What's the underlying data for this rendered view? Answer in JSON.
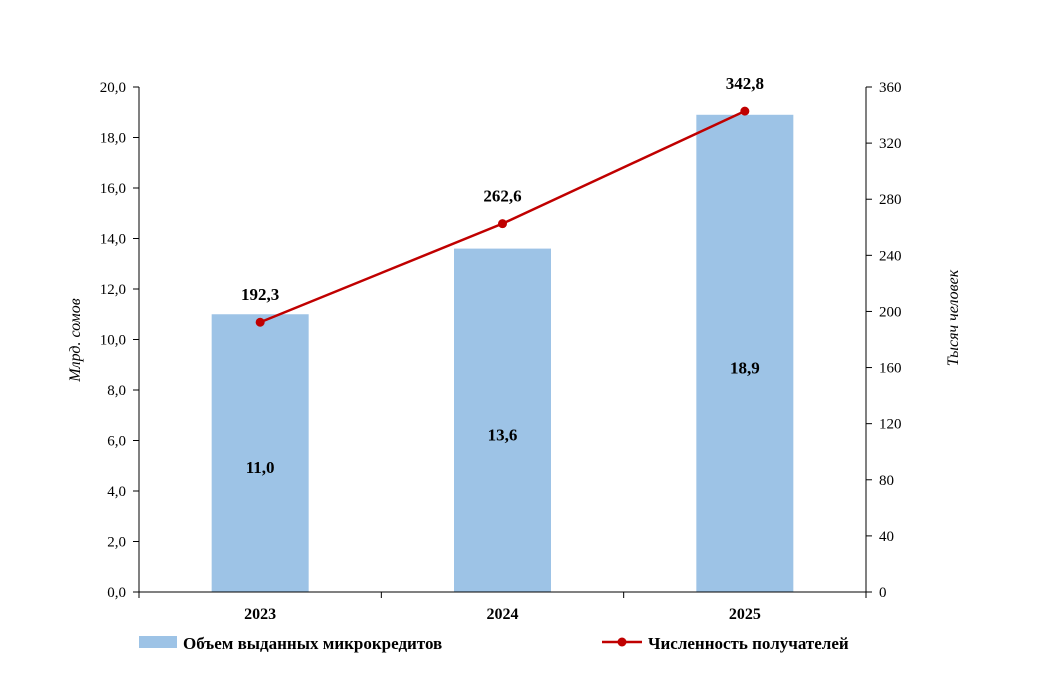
{
  "chart_data": {
    "type": "bar",
    "categories": [
      "2023",
      "2024",
      "2025"
    ],
    "series": [
      {
        "name": "Объем выданных микрокредитов",
        "type": "bar",
        "axis": "left",
        "values": [
          11.0,
          13.6,
          18.9
        ],
        "labels": [
          "11,0",
          "13,6",
          "18,9"
        ],
        "color": "#9DC3E6"
      },
      {
        "name": "Численность получателей",
        "type": "line",
        "axis": "right",
        "values": [
          192.3,
          262.6,
          342.8
        ],
        "labels": [
          "192,3",
          "262,6",
          "342,8"
        ],
        "color": "#C00000"
      }
    ],
    "ylabel": "Млрд. сомов",
    "y2label": "Тысяч человек",
    "ylim": [
      0,
      20
    ],
    "y2lim": [
      0,
      360
    ],
    "yticks": [
      "0,0",
      "2,0",
      "4,0",
      "6,0",
      "8,0",
      "10,0",
      "12,0",
      "14,0",
      "16,0",
      "18,0",
      "20,0"
    ],
    "y2ticks": [
      "0",
      "40",
      "80",
      "120",
      "160",
      "200",
      "240",
      "280",
      "320",
      "360"
    ],
    "grid": false,
    "legend": "bottom"
  }
}
